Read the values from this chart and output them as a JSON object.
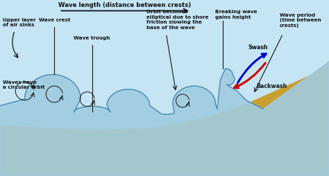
{
  "background_sky": "#c5e5f5",
  "sand_color": "#c8a030",
  "wave_fill": "#a0cce0",
  "wave_outline": "#4a8ab0",
  "arrow_color": "#111111",
  "text_color": "#111111",
  "swash_color": "#0000cc",
  "backwash_color": "#cc0000",
  "labels": {
    "wave_length": "Wave length (distance between crests)",
    "upper_layer": "Upper layer\nof air sinks",
    "wave_crest": "Wave crest",
    "wave_trough": "Wave trough",
    "orbit": "Orbit becomes\nelliptical due to shore\nfriction slowing the\nbase of the wave",
    "breaking": "Breaking wave\ngains height",
    "wave_period": "Wave period\n(time between\ncrests)",
    "circular_orbit": "Waves have\na circular orbit",
    "swash": "Swash",
    "backwash": "Backwash"
  }
}
